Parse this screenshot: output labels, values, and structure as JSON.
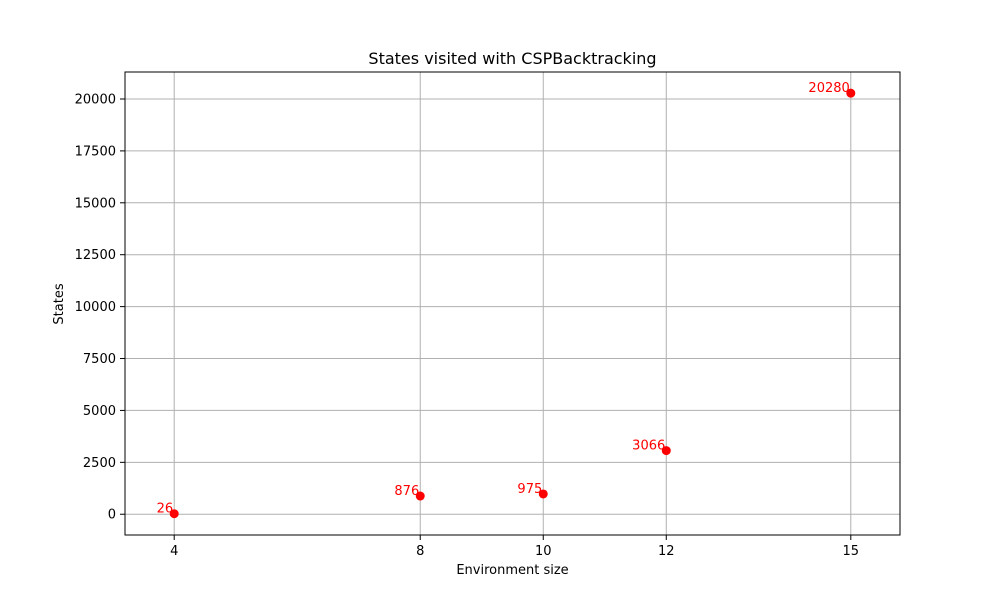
{
  "chart_data": {
    "type": "scatter",
    "title": "States visited with CSPBacktracking",
    "xlabel": "Environment size",
    "ylabel": "States",
    "x": [
      4,
      8,
      10,
      12,
      15
    ],
    "x_tick_labels": [
      "4",
      "8",
      "10",
      "12",
      "15"
    ],
    "series": [
      {
        "values": [
          26,
          876,
          975,
          3066,
          20280
        ],
        "point_labels": [
          "26",
          "876",
          "975",
          "3066",
          "20280"
        ],
        "color": "#ff0000"
      }
    ],
    "y_ticks": [
      0,
      2500,
      5000,
      7500,
      10000,
      12500,
      15000,
      17500,
      20000
    ],
    "y_tick_labels": [
      "0",
      "2500",
      "5000",
      "7500",
      "10000",
      "12500",
      "15000",
      "17500",
      "20000"
    ],
    "xlim": [
      3.2,
      15.8
    ],
    "ylim": [
      -1000,
      21300
    ],
    "grid": true,
    "grid_color": "#b0b0b0",
    "legend": "none"
  }
}
